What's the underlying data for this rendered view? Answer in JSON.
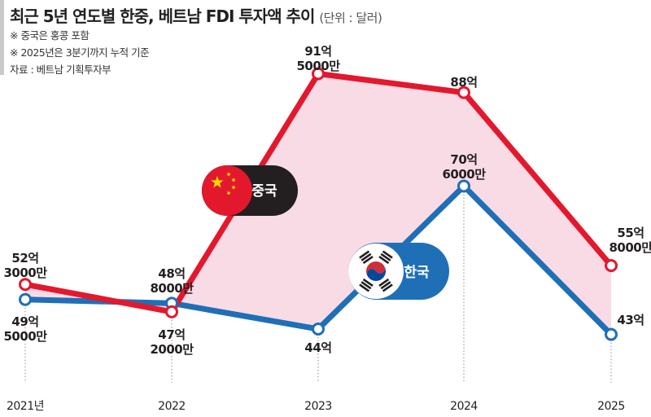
{
  "header": {
    "title": "최근 5년 연도별 한중, 베트남 FDI 투자액 추이",
    "unit": "(단위 : 달러)",
    "notes": [
      "※ 중국은 홍콩 포함",
      "※ 2025년은 3분기까지 누적 기준"
    ],
    "source": "자료 : 베트남 기획투자부"
  },
  "colors": {
    "china": "#e3182d",
    "korea": "#1f6fb7",
    "fill": "#f9dbe6",
    "text": "#231f20"
  },
  "chart_data": {
    "type": "line",
    "title": "최근 5년 연도별 한중, 베트남 FDI 투자액 추이",
    "unit": "달러",
    "categories": [
      "2021년",
      "2022",
      "2023",
      "2024",
      "2025"
    ],
    "ylim": [
      40,
      95
    ],
    "grid": false,
    "series": [
      {
        "name": "중국",
        "icon": "china-flag-icon",
        "values": [
          52.3,
          47.2,
          91.5,
          88.0,
          55.8
        ],
        "labels": [
          [
            "52억",
            "3000만"
          ],
          [
            "47억",
            "2000만"
          ],
          [
            "91억",
            "5000만"
          ],
          [
            "88억"
          ],
          [
            "55억",
            "8000만"
          ]
        ]
      },
      {
        "name": "한국",
        "icon": "korea-flag-icon",
        "values": [
          49.5,
          48.8,
          44.0,
          70.6,
          43.0
        ],
        "labels": [
          [
            "49억",
            "5000만"
          ],
          [
            "48억",
            "8000만"
          ],
          [
            "44억"
          ],
          [
            "70억",
            "6000만"
          ],
          [
            "43억"
          ]
        ]
      }
    ]
  }
}
